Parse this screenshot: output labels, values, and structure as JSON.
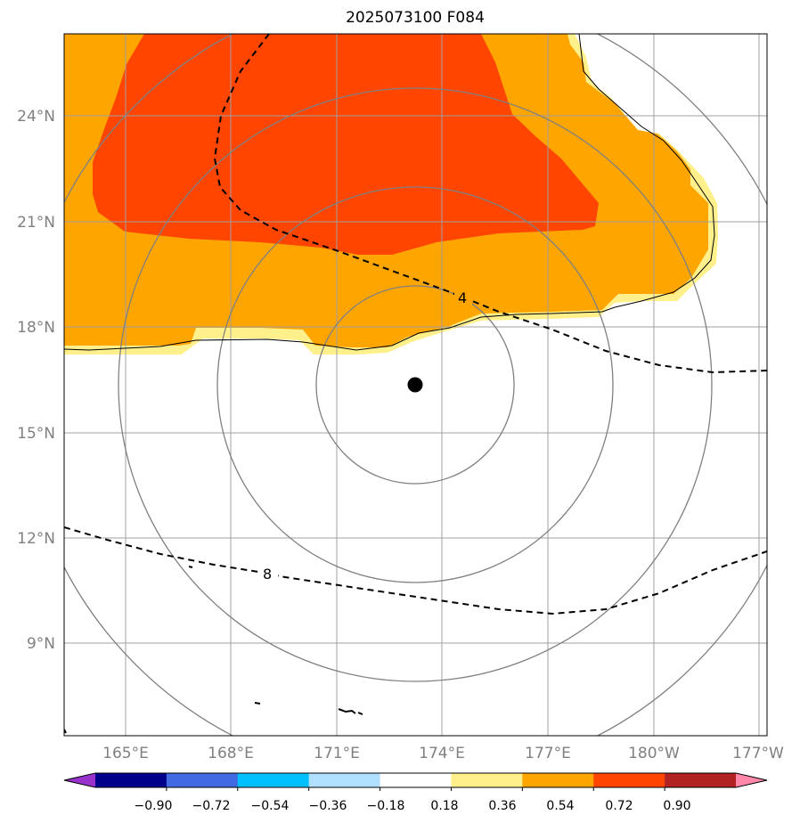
{
  "title": "2025073100 F084",
  "map": {
    "lat_ticks": [
      "24°N",
      "21°N",
      "18°N",
      "15°N",
      "12°N",
      "9°N"
    ],
    "lon_ticks": [
      "165°E",
      "168°E",
      "171°E",
      "174°E",
      "177°E",
      "180°W",
      "177°W"
    ],
    "contour_labels": [
      "4",
      "8"
    ],
    "storm_center": {
      "lat": 16.3,
      "lon": "173.3°E"
    },
    "shading_colors": {
      "light": "#fff08c",
      "medium": "#ffa500",
      "strong": "#ff4500"
    }
  },
  "colorbar": {
    "ticks": [
      "−0.90",
      "−0.72",
      "−0.54",
      "−0.36",
      "−0.18",
      "0.18",
      "0.36",
      "0.54",
      "0.72",
      "0.90"
    ],
    "colors": [
      "#9932cc",
      "#00008b",
      "#4169e1",
      "#00bfff",
      "#b0e0ff",
      "#ffffff",
      "#fff08c",
      "#ffa500",
      "#ff4500",
      "#b22222",
      "#ff88aa"
    ]
  }
}
